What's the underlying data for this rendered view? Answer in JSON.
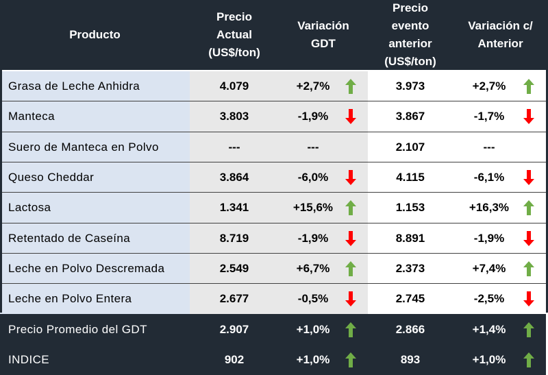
{
  "headers": {
    "producto": "Producto",
    "precio_actual": [
      "Precio",
      "Actual",
      "(US$/ton)"
    ],
    "variacion_gdt": [
      "Variación",
      "GDT"
    ],
    "precio_anterior": [
      "Precio",
      "evento",
      "anterior",
      "(US$/ton)"
    ],
    "variacion_anterior": [
      "Variación c/",
      "Anterior"
    ]
  },
  "rows": [
    {
      "producto": "Grasa de Leche Anhidra",
      "precio_actual": "4.079",
      "variacion_gdt": "+2,7%",
      "trend_gdt": "up",
      "precio_anterior": "3.973",
      "variacion_anterior": "+2,7%",
      "trend_anterior": "up"
    },
    {
      "producto": "Manteca",
      "precio_actual": "3.803",
      "variacion_gdt": "-1,9%",
      "trend_gdt": "down",
      "precio_anterior": "3.867",
      "variacion_anterior": "-1,7%",
      "trend_anterior": "down"
    },
    {
      "producto": "Suero de Manteca en Polvo",
      "precio_actual": "---",
      "variacion_gdt": "---",
      "trend_gdt": "none",
      "precio_anterior": "2.107",
      "variacion_anterior": "---",
      "trend_anterior": "none"
    },
    {
      "producto": "Queso Cheddar",
      "precio_actual": "3.864",
      "variacion_gdt": "-6,0%",
      "trend_gdt": "down",
      "precio_anterior": "4.115",
      "variacion_anterior": "-6,1%",
      "trend_anterior": "down"
    },
    {
      "producto": "Lactosa",
      "precio_actual": "1.341",
      "variacion_gdt": "+15,6%",
      "trend_gdt": "up",
      "precio_anterior": "1.153",
      "variacion_anterior": "+16,3%",
      "trend_anterior": "up"
    },
    {
      "producto": "Retentado de Caseína",
      "precio_actual": "8.719",
      "variacion_gdt": "-1,9%",
      "trend_gdt": "down",
      "precio_anterior": "8.891",
      "variacion_anterior": "-1,9%",
      "trend_anterior": "down"
    },
    {
      "producto": "Leche en Polvo Descremada",
      "precio_actual": "2.549",
      "variacion_gdt": "+6,7%",
      "trend_gdt": "up",
      "precio_anterior": "2.373",
      "variacion_anterior": "+7,4%",
      "trend_anterior": "up"
    },
    {
      "producto": "Leche en Polvo Entera",
      "precio_actual": "2.677",
      "variacion_gdt": "-0,5%",
      "trend_gdt": "down",
      "precio_anterior": "2.745",
      "variacion_anterior": "-2,5%",
      "trend_anterior": "down"
    }
  ],
  "summary_rows": [
    {
      "producto": "Precio Promedio del GDT",
      "precio_actual": "2.907",
      "variacion_gdt": "+1,0%",
      "trend_gdt": "up",
      "precio_anterior": "2.866",
      "variacion_anterior": "+1,4%",
      "trend_anterior": "up"
    },
    {
      "producto": "INDICE",
      "precio_actual": "902",
      "variacion_gdt": "+1,0%",
      "trend_gdt": "up",
      "precio_anterior": "893",
      "variacion_anterior": "+1,0%",
      "trend_anterior": "up"
    }
  ],
  "colors": {
    "header_bg": "#222b35",
    "product_cell_bg": "#dbe4f1",
    "current_price_bg": "#e8e8e8",
    "up_arrow": "#70ad47",
    "down_arrow": "#ff0000"
  },
  "icons": {
    "up": "arrow-up-icon",
    "down": "arrow-down-icon"
  }
}
